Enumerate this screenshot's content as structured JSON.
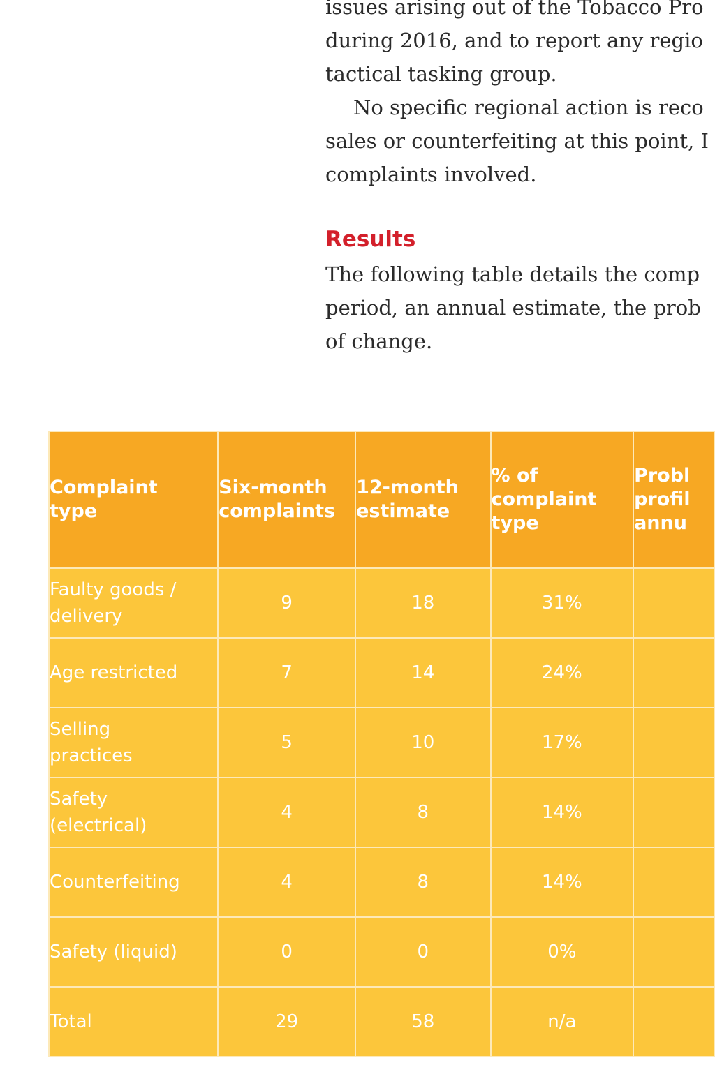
{
  "paragraph1": {
    "lines": [
      "issues arising out of the Tobacco Pro",
      "during 2016, and to report any regio",
      "tactical tasking group.",
      "No specific regional action is reco",
      "sales or counterfeiting at this point, I",
      "complaints involved."
    ]
  },
  "results": {
    "heading": "Results",
    "lines": [
      "The following table details the comp",
      "period, an annual estimate, the prob",
      "of change."
    ]
  },
  "table": {
    "headers": [
      [
        "Complaint",
        "type"
      ],
      [
        "Six-month",
        "complaints"
      ],
      [
        "12-month",
        "estimate"
      ],
      [
        "% of",
        "complaint",
        "type"
      ],
      [
        "Probl",
        "profil",
        "annu"
      ]
    ],
    "rows": [
      {
        "type": [
          "Faulty goods /",
          "delivery"
        ],
        "six_month": "9",
        "twelve_month": "18",
        "percent": "31%",
        "problem": ""
      },
      {
        "type": [
          "Age restricted"
        ],
        "six_month": "7",
        "twelve_month": "14",
        "percent": "24%",
        "problem": ""
      },
      {
        "type": [
          "Selling",
          "practices"
        ],
        "six_month": "5",
        "twelve_month": "10",
        "percent": "17%",
        "problem": ""
      },
      {
        "type": [
          "Safety",
          "(electrical)"
        ],
        "six_month": "4",
        "twelve_month": "8",
        "percent": "14%",
        "problem": ""
      },
      {
        "type": [
          "Counterfeiting"
        ],
        "six_month": "4",
        "twelve_month": "8",
        "percent": "14%",
        "problem": ""
      },
      {
        "type": [
          "Safety (liquid)"
        ],
        "six_month": "0",
        "twelve_month": "0",
        "percent": "0%",
        "problem": ""
      },
      {
        "type": [
          "Total"
        ],
        "six_month": "29",
        "twelve_month": "58",
        "percent": "n/a",
        "problem": ""
      }
    ]
  },
  "colors": {
    "header_bg": "#f7a823",
    "cell_bg": "#fcc63b",
    "heading_red": "#d3202b",
    "body_text": "#2b2b2b"
  }
}
